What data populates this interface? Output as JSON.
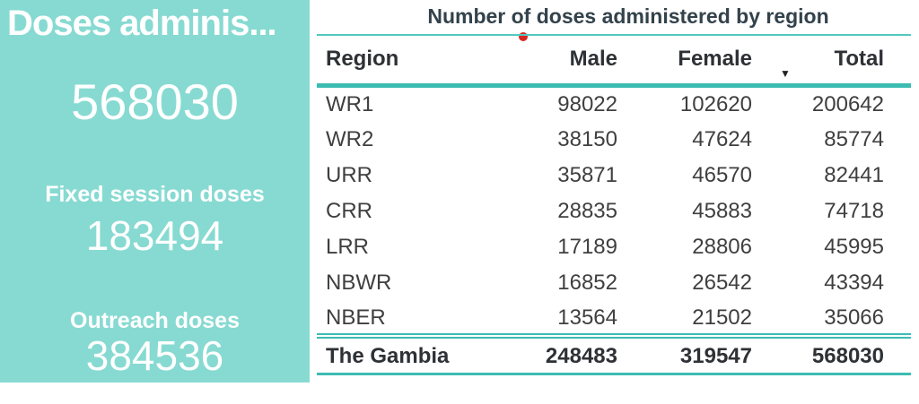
{
  "colors": {
    "card_background": "#87DAD2",
    "card_text": "#FFFFFF",
    "table_accent_line": "#3CBCB1",
    "table_title_text": "#33424B",
    "table_body_text": "#3F3F3F",
    "red_dot": "#D5271F"
  },
  "chart_data": [
    {
      "type": "table",
      "title": "Number of doses administered by region",
      "columns": [
        "Region",
        "Male",
        "Female",
        "Total"
      ],
      "rows": [
        [
          "WR1",
          98022,
          102620,
          200642
        ],
        [
          "WR2",
          38150,
          47624,
          85774
        ],
        [
          "URR",
          35871,
          46570,
          82441
        ],
        [
          "CRR",
          28835,
          45883,
          74718
        ],
        [
          "LRR",
          17189,
          28806,
          45995
        ],
        [
          "NBWR",
          16852,
          26542,
          43394
        ],
        [
          "NBER",
          13564,
          21502,
          35066
        ]
      ],
      "total_row": [
        "The Gambia",
        248483,
        319547,
        568030
      ],
      "sort": {
        "column": "Total",
        "direction": "descending"
      },
      "icons": {
        "sort_descending": "▼"
      },
      "layout": {
        "grid": "off",
        "header_divider": "teal",
        "total_divider": "double-teal"
      }
    },
    {
      "type": "card",
      "title": "Doses adminis...",
      "value": 568030,
      "cards": [
        {
          "label": "Fixed session doses",
          "value": 183494
        },
        {
          "label": "Outreach doses",
          "value": 384536
        }
      ]
    }
  ]
}
